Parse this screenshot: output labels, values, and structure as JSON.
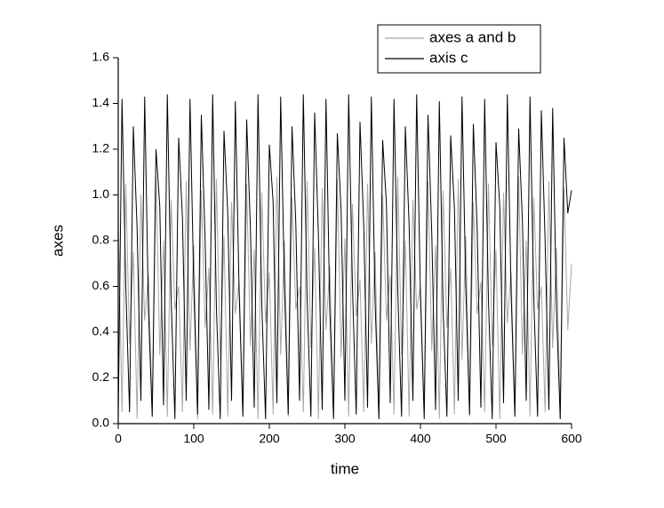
{
  "chart_data": {
    "type": "line",
    "xlabel": "time",
    "ylabel": "axes",
    "x": [
      0,
      5,
      10,
      15,
      20,
      25,
      30,
      35,
      40,
      45,
      50,
      55,
      60,
      65,
      70,
      75,
      80,
      85,
      90,
      95,
      100,
      105,
      110,
      115,
      120,
      125,
      130,
      135,
      140,
      145,
      150,
      155,
      160,
      165,
      170,
      175,
      180,
      185,
      190,
      195,
      200,
      205,
      210,
      215,
      220,
      225,
      230,
      235,
      240,
      245,
      250,
      255,
      260,
      265,
      270,
      275,
      280,
      285,
      290,
      295,
      300,
      305,
      310,
      315,
      320,
      325,
      330,
      335,
      340,
      345,
      350,
      355,
      360,
      365,
      370,
      375,
      380,
      385,
      390,
      395,
      400,
      405,
      410,
      415,
      420,
      425,
      430,
      435,
      440,
      445,
      450,
      455,
      460,
      465,
      470,
      475,
      480,
      485,
      490,
      495,
      500,
      505,
      510,
      515,
      520,
      525,
      530,
      535,
      540,
      545,
      550,
      555,
      560,
      565,
      570,
      575,
      580,
      585,
      590,
      595,
      600
    ],
    "series": [
      {
        "name": "axes a and b",
        "color": "#a8a8a8",
        "values": [
          0.9,
          0.05,
          1.05,
          0.35,
          0.75,
          0.02,
          1.0,
          0.45,
          0.65,
          0.04,
          1.08,
          0.3,
          0.8,
          0.03,
          0.98,
          0.5,
          0.6,
          0.05,
          1.06,
          0.32,
          0.78,
          0.02,
          1.02,
          0.42,
          0.68,
          0.04,
          1.07,
          0.28,
          0.82,
          0.03,
          0.97,
          0.48,
          0.62,
          0.05,
          1.05,
          0.34,
          0.76,
          0.02,
          1.01,
          0.44,
          0.66,
          0.04,
          1.08,
          0.3,
          0.8,
          0.03,
          0.99,
          0.5,
          0.6,
          0.05,
          1.06,
          0.33,
          0.77,
          0.02,
          1.03,
          0.41,
          0.69,
          0.04,
          1.07,
          0.29,
          0.81,
          0.03,
          0.96,
          0.47,
          0.63,
          0.05,
          1.05,
          0.35,
          0.75,
          0.02,
          1.0,
          0.45,
          0.65,
          0.04,
          1.08,
          0.3,
          0.8,
          0.03,
          0.98,
          0.5,
          0.6,
          0.05,
          1.06,
          0.32,
          0.78,
          0.02,
          1.02,
          0.42,
          0.68,
          0.04,
          1.07,
          0.28,
          0.82,
          0.03,
          0.97,
          0.48,
          0.62,
          0.05,
          1.05,
          0.34,
          0.76,
          0.02,
          1.01,
          0.44,
          0.66,
          0.04,
          1.08,
          0.3,
          0.8,
          0.03,
          0.99,
          0.5,
          0.6,
          0.05,
          1.06,
          0.33,
          0.77,
          0.02,
          1.03,
          0.41,
          0.7
        ]
      },
      {
        "name": "axis c",
        "color": "#000000",
        "values": [
          0.02,
          1.42,
          0.6,
          0.05,
          1.3,
          0.85,
          0.1,
          1.43,
          0.5,
          0.03,
          1.2,
          0.95,
          0.08,
          1.44,
          0.55,
          0.02,
          1.25,
          0.9,
          0.1,
          1.42,
          0.6,
          0.04,
          1.35,
          0.8,
          0.06,
          1.44,
          0.5,
          0.02,
          1.28,
          0.92,
          0.1,
          1.41,
          0.58,
          0.03,
          1.33,
          0.85,
          0.07,
          1.44,
          0.52,
          0.02,
          1.22,
          0.97,
          0.09,
          1.43,
          0.6,
          0.04,
          1.3,
          0.88,
          0.1,
          1.44,
          0.55,
          0.03,
          1.36,
          0.82,
          0.06,
          1.42,
          0.5,
          0.02,
          1.27,
          0.93,
          0.1,
          1.44,
          0.6,
          0.04,
          1.32,
          0.86,
          0.07,
          1.43,
          0.53,
          0.02,
          1.24,
          0.96,
          0.09,
          1.42,
          0.58,
          0.03,
          1.3,
          0.87,
          0.1,
          1.44,
          0.56,
          0.02,
          1.35,
          0.83,
          0.06,
          1.41,
          0.5,
          0.03,
          1.26,
          0.94,
          0.1,
          1.43,
          0.6,
          0.04,
          1.31,
          0.86,
          0.07,
          1.42,
          0.54,
          0.02,
          1.23,
          0.95,
          0.09,
          1.44,
          0.57,
          0.03,
          1.29,
          0.88,
          0.1,
          1.43,
          0.55,
          0.03,
          1.37,
          0.8,
          0.06,
          1.38,
          0.5,
          0.02,
          1.25,
          0.92,
          1.02
        ]
      }
    ],
    "xlim": [
      0,
      600
    ],
    "xticks": [
      0,
      100,
      200,
      300,
      400,
      500,
      600
    ],
    "ylim": [
      0,
      1.6
    ],
    "yticks": [
      {
        "value": 0,
        "label": "0.0"
      },
      0.2,
      0.4,
      0.6,
      0.8,
      {
        "value": 1,
        "label": "1.0"
      },
      1.2,
      1.4,
      1.6
    ],
    "legend": "upper right"
  }
}
